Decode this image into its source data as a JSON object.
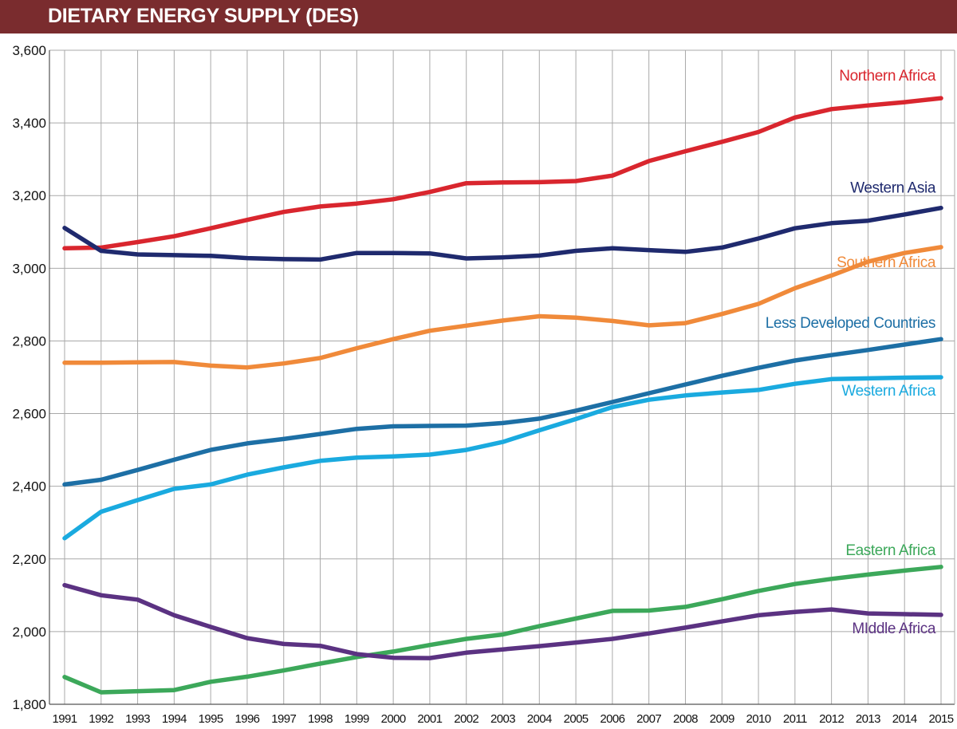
{
  "chart_data": {
    "type": "line",
    "title": "DIETARY ENERGY SUPPLY (DES)",
    "xlabel": "",
    "ylabel": "",
    "ylim": [
      1800,
      3600
    ],
    "yticks": [
      "1,800",
      "2,000",
      "2,200",
      "2,400",
      "2,600",
      "2,800",
      "3,000",
      "3,200",
      "3,400",
      "3,600"
    ],
    "ytick_values": [
      1800,
      2000,
      2200,
      2400,
      2600,
      2800,
      3000,
      3200,
      3400,
      3600
    ],
    "x": [
      "1991",
      "1992",
      "1993",
      "1994",
      "1995",
      "1996",
      "1997",
      "1998",
      "1999",
      "2000",
      "2001",
      "2002",
      "2003",
      "2004",
      "2005",
      "2006",
      "2007",
      "2008",
      "2009",
      "2010",
      "2011",
      "2012",
      "2013",
      "2014",
      "2015"
    ],
    "grid": true,
    "series": [
      {
        "name": "Northern Africa",
        "color": "#d9262e",
        "values": [
          3055,
          3057,
          3072,
          3088,
          3110,
          3133,
          3155,
          3170,
          3178,
          3190,
          3210,
          3234,
          3236,
          3237,
          3240,
          3255,
          3295,
          3322,
          3348,
          3375,
          3415,
          3438,
          3448,
          3457,
          3468
        ]
      },
      {
        "name": "Western Asia",
        "color": "#1f2a6e",
        "values": [
          3111,
          3048,
          3038,
          3036,
          3034,
          3028,
          3025,
          3024,
          3042,
          3042,
          3041,
          3027,
          3030,
          3035,
          3048,
          3055,
          3050,
          3045,
          3057,
          3082,
          3110,
          3124,
          3131,
          3148,
          3166
        ]
      },
      {
        "name": "Southern Africa",
        "color": "#f08a3a",
        "values": [
          2740,
          2740,
          2741,
          2742,
          2732,
          2727,
          2738,
          2753,
          2780,
          2805,
          2828,
          2842,
          2856,
          2868,
          2864,
          2855,
          2843,
          2849,
          2874,
          2902,
          2945,
          2980,
          3018,
          3042,
          3058
        ]
      },
      {
        "name": "Less Developed Countries",
        "color": "#1d6fa5",
        "values": [
          2405,
          2418,
          2445,
          2473,
          2500,
          2518,
          2530,
          2544,
          2558,
          2565,
          2566,
          2567,
          2574,
          2586,
          2608,
          2632,
          2656,
          2680,
          2704,
          2726,
          2746,
          2761,
          2775,
          2790,
          2805
        ]
      },
      {
        "name": "Western Africa",
        "color": "#1aaadf",
        "values": [
          2257,
          2330,
          2362,
          2393,
          2405,
          2432,
          2452,
          2470,
          2479,
          2482,
          2487,
          2500,
          2522,
          2554,
          2585,
          2618,
          2638,
          2650,
          2658,
          2665,
          2682,
          2695,
          2697,
          2699,
          2700
        ]
      },
      {
        "name": "Eastern Africa",
        "color": "#3ca85a",
        "values": [
          1875,
          1833,
          1836,
          1839,
          1862,
          1876,
          1893,
          1912,
          1930,
          1945,
          1963,
          1980,
          1992,
          2015,
          2036,
          2057,
          2058,
          2068,
          2089,
          2112,
          2131,
          2145,
          2157,
          2168,
          2178
        ]
      },
      {
        "name": "MIddle Africa",
        "color": "#5b3282",
        "values": [
          2128,
          2100,
          2088,
          2045,
          2013,
          1982,
          1966,
          1961,
          1938,
          1928,
          1927,
          1942,
          1951,
          1960,
          1970,
          1980,
          1995,
          2011,
          2028,
          2045,
          2054,
          2061,
          2050,
          2048,
          2046
        ]
      }
    ]
  }
}
